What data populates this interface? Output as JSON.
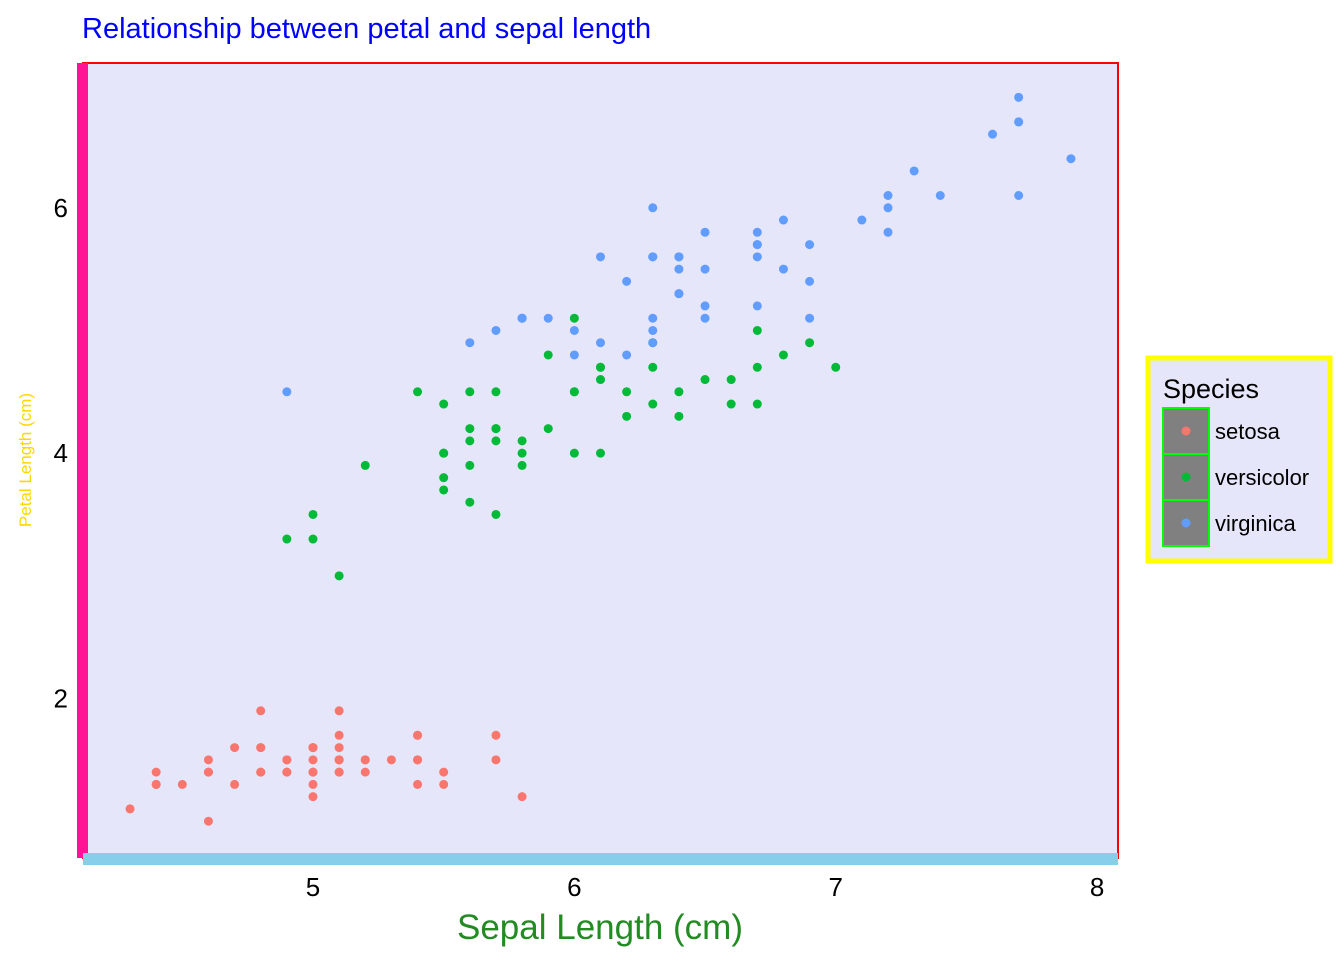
{
  "chart_data": {
    "type": "scatter",
    "title": "Relationship between petal and sepal length",
    "xlabel": "Sepal Length (cm)",
    "ylabel": "Petal Length (cm)",
    "xlim": [
      4.12,
      8.08
    ],
    "ylim": [
      0.7,
      7.18
    ],
    "x_ticks": [
      5,
      6,
      7,
      8
    ],
    "y_ticks": [
      2,
      4,
      6
    ],
    "legend": {
      "title": "Species",
      "position": "right"
    },
    "colors": {
      "title": "#0000FF",
      "xlabel": "#228B22",
      "ylabel": "#FFD700",
      "panel_background": "#E6E6FA",
      "panel_border": "#FF0000",
      "y_axis_line": "#FF1493",
      "x_axis_line": "#87CEEB",
      "legend_border": "#FFFF00",
      "legend_key_fill": "#808080",
      "legend_key_border": "#00FF00"
    },
    "series": [
      {
        "name": "setosa",
        "color": "#F8766D",
        "points": [
          [
            5.1,
            1.4
          ],
          [
            4.9,
            1.4
          ],
          [
            4.7,
            1.3
          ],
          [
            4.6,
            1.5
          ],
          [
            5.0,
            1.4
          ],
          [
            5.4,
            1.7
          ],
          [
            4.6,
            1.4
          ],
          [
            5.0,
            1.5
          ],
          [
            4.4,
            1.4
          ],
          [
            4.9,
            1.5
          ],
          [
            5.4,
            1.5
          ],
          [
            4.8,
            1.6
          ],
          [
            4.8,
            1.4
          ],
          [
            4.3,
            1.1
          ],
          [
            5.8,
            1.2
          ],
          [
            5.7,
            1.5
          ],
          [
            5.4,
            1.3
          ],
          [
            5.1,
            1.4
          ],
          [
            5.7,
            1.7
          ],
          [
            5.1,
            1.5
          ],
          [
            5.4,
            1.7
          ],
          [
            5.1,
            1.5
          ],
          [
            4.6,
            1.0
          ],
          [
            5.1,
            1.7
          ],
          [
            4.8,
            1.9
          ],
          [
            5.0,
            1.6
          ],
          [
            5.0,
            1.6
          ],
          [
            5.2,
            1.5
          ],
          [
            5.2,
            1.4
          ],
          [
            4.7,
            1.6
          ],
          [
            4.8,
            1.6
          ],
          [
            5.4,
            1.5
          ],
          [
            5.2,
            1.5
          ],
          [
            5.5,
            1.4
          ],
          [
            4.9,
            1.5
          ],
          [
            5.0,
            1.2
          ],
          [
            5.5,
            1.3
          ],
          [
            4.9,
            1.4
          ],
          [
            4.4,
            1.3
          ],
          [
            5.1,
            1.5
          ],
          [
            5.0,
            1.3
          ],
          [
            4.5,
            1.3
          ],
          [
            4.4,
            1.3
          ],
          [
            5.0,
            1.6
          ],
          [
            5.1,
            1.9
          ],
          [
            4.8,
            1.4
          ],
          [
            5.1,
            1.6
          ],
          [
            4.6,
            1.4
          ],
          [
            5.3,
            1.5
          ],
          [
            5.0,
            1.4
          ]
        ]
      },
      {
        "name": "versicolor",
        "color": "#00BA38",
        "points": [
          [
            7.0,
            4.7
          ],
          [
            6.4,
            4.5
          ],
          [
            6.9,
            4.9
          ],
          [
            5.5,
            4.0
          ],
          [
            6.5,
            4.6
          ],
          [
            5.7,
            4.5
          ],
          [
            6.3,
            4.7
          ],
          [
            4.9,
            3.3
          ],
          [
            6.6,
            4.6
          ],
          [
            5.2,
            3.9
          ],
          [
            5.0,
            3.5
          ],
          [
            5.9,
            4.2
          ],
          [
            6.0,
            4.0
          ],
          [
            6.1,
            4.7
          ],
          [
            5.6,
            3.6
          ],
          [
            6.7,
            4.4
          ],
          [
            5.6,
            4.5
          ],
          [
            5.8,
            4.1
          ],
          [
            6.2,
            4.5
          ],
          [
            5.6,
            3.9
          ],
          [
            5.9,
            4.8
          ],
          [
            6.1,
            4.0
          ],
          [
            6.3,
            4.9
          ],
          [
            6.1,
            4.7
          ],
          [
            6.4,
            4.3
          ],
          [
            6.6,
            4.4
          ],
          [
            6.8,
            4.8
          ],
          [
            6.7,
            5.0
          ],
          [
            6.0,
            4.5
          ],
          [
            5.7,
            3.5
          ],
          [
            5.5,
            3.8
          ],
          [
            5.5,
            3.7
          ],
          [
            5.8,
            3.9
          ],
          [
            6.0,
            5.1
          ],
          [
            5.4,
            4.5
          ],
          [
            6.0,
            4.5
          ],
          [
            6.7,
            4.7
          ],
          [
            6.3,
            4.4
          ],
          [
            5.6,
            4.1
          ],
          [
            5.5,
            4.0
          ],
          [
            5.5,
            4.4
          ],
          [
            6.1,
            4.6
          ],
          [
            5.8,
            4.0
          ],
          [
            5.0,
            3.3
          ],
          [
            5.6,
            4.2
          ],
          [
            5.7,
            4.2
          ],
          [
            5.7,
            4.2
          ],
          [
            6.2,
            4.3
          ],
          [
            5.1,
            3.0
          ],
          [
            5.7,
            4.1
          ]
        ]
      },
      {
        "name": "virginica",
        "color": "#619CFF",
        "points": [
          [
            6.3,
            6.0
          ],
          [
            5.8,
            5.1
          ],
          [
            7.1,
            5.9
          ],
          [
            6.3,
            5.6
          ],
          [
            6.5,
            5.8
          ],
          [
            7.6,
            6.6
          ],
          [
            4.9,
            4.5
          ],
          [
            7.3,
            6.3
          ],
          [
            6.7,
            5.8
          ],
          [
            7.2,
            6.1
          ],
          [
            6.5,
            5.1
          ],
          [
            6.4,
            5.3
          ],
          [
            6.8,
            5.5
          ],
          [
            5.7,
            5.0
          ],
          [
            5.8,
            5.1
          ],
          [
            6.4,
            5.3
          ],
          [
            6.5,
            5.5
          ],
          [
            7.7,
            6.7
          ],
          [
            7.7,
            6.9
          ],
          [
            6.0,
            5.0
          ],
          [
            6.9,
            5.7
          ],
          [
            5.6,
            4.9
          ],
          [
            7.7,
            6.7
          ],
          [
            6.3,
            4.9
          ],
          [
            6.7,
            5.7
          ],
          [
            7.2,
            6.0
          ],
          [
            6.2,
            4.8
          ],
          [
            6.1,
            4.9
          ],
          [
            6.4,
            5.6
          ],
          [
            7.2,
            5.8
          ],
          [
            7.4,
            6.1
          ],
          [
            7.9,
            6.4
          ],
          [
            6.4,
            5.6
          ],
          [
            6.3,
            5.1
          ],
          [
            6.1,
            5.6
          ],
          [
            7.7,
            6.1
          ],
          [
            6.3,
            5.6
          ],
          [
            6.4,
            5.5
          ],
          [
            6.0,
            4.8
          ],
          [
            6.9,
            5.4
          ],
          [
            6.7,
            5.6
          ],
          [
            6.9,
            5.1
          ],
          [
            5.8,
            5.1
          ],
          [
            6.8,
            5.9
          ],
          [
            6.7,
            5.7
          ],
          [
            6.7,
            5.2
          ],
          [
            6.3,
            5.0
          ],
          [
            6.5,
            5.2
          ],
          [
            6.2,
            5.4
          ],
          [
            5.9,
            5.1
          ]
        ]
      }
    ]
  }
}
